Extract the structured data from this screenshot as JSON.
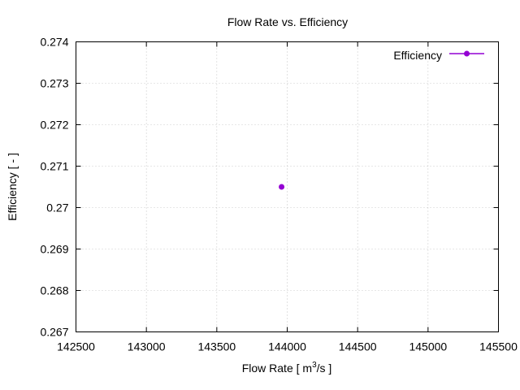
{
  "chart_data": {
    "type": "scatter",
    "title": "Flow Rate  vs. Efficiency",
    "xlabel": "Flow Rate [ m",
    "xlabel_sup": "3",
    "xlabel_end": "/s ]",
    "ylabel": "Efficiency [ - ]",
    "xlim": [
      142500,
      145500
    ],
    "ylim": [
      0.267,
      0.274
    ],
    "xticks": [
      "142500",
      "143000",
      "143500",
      "144000",
      "144500",
      "145000",
      "145500"
    ],
    "yticks": [
      "0.267",
      "0.268",
      "0.269",
      "0.27",
      "0.271",
      "0.272",
      "0.273",
      "0.274"
    ],
    "grid": true,
    "legend_position": "top-right",
    "series": [
      {
        "name": "Efficiency",
        "color": "#9400d3",
        "x": [
          143960
        ],
        "y": [
          0.2705
        ]
      }
    ]
  }
}
